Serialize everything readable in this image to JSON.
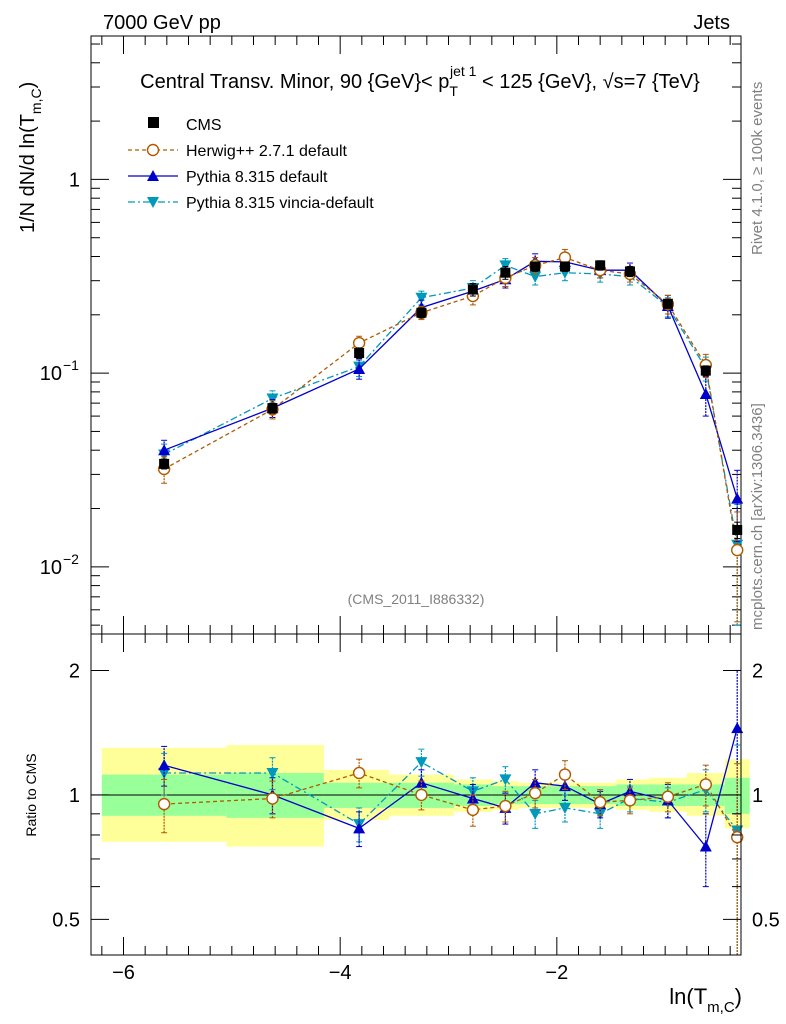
{
  "header": {
    "left": "7000 GeV pp",
    "right": "Jets"
  },
  "side_labels": {
    "rivet": "Rivet 4.1.0, ≥ 100k events",
    "mcplots": "mcplots.cern.ch [arXiv:1306.3436]"
  },
  "colors": {
    "cms": "#000000",
    "herwig": "#b35900",
    "pythia": "#0000cc",
    "vincia": "#0099bb",
    "band_outer": "#ffff99",
    "band_inner": "#99ff99"
  },
  "chart_data": [
    {
      "type": "line",
      "title": "Central Transv. Minor, 90 {GeV}< p_T^jet 1 < 125 {GeV}, √s=7 {TeV}",
      "title_parts": {
        "pre": "Central Transv. Minor, 90 {GeV}< p",
        "sub": "T",
        "sup": "jet 1",
        "post": " < 125 {GeV}, ",
        "sqrt": "√",
        "s_tail": "s=7 {TeV}"
      },
      "watermark": "(CMS_2011_I886332)",
      "ylabel": {
        "pre": "1/N   dN/d ln(T",
        "sub": "m,C",
        "post": ")"
      },
      "xlabel": {
        "pre": "ln(T",
        "sub": "m,C",
        "post": ")"
      },
      "yscale": "log",
      "ylim": [
        0.0045,
        5.5
      ],
      "xlim": [
        -6.3,
        -0.3
      ],
      "y_ticks": [
        {
          "value": 1,
          "base": "1",
          "exp": ""
        },
        {
          "value": 0.1,
          "base": "10",
          "exp": "−1"
        },
        {
          "value": 0.01,
          "base": "10",
          "exp": "−2"
        }
      ],
      "legend": {
        "position": "top-left",
        "entries": [
          {
            "key": "cms",
            "label": "CMS"
          },
          {
            "key": "herwig",
            "label": "Herwig++ 2.7.1 default"
          },
          {
            "key": "pythia",
            "label": "Pythia 8.315 default"
          },
          {
            "key": "vincia",
            "label": "Pythia 8.315 vincia-default"
          }
        ]
      },
      "series": [
        {
          "name": "CMS",
          "key": "cms",
          "x": [
            -5.625,
            -4.625,
            -3.825,
            -3.25,
            -2.775,
            -2.475,
            -2.2,
            -1.925,
            -1.6,
            -1.325,
            -0.975,
            -0.625,
            -0.335
          ],
          "values": [
            0.034,
            0.066,
            0.127,
            0.205,
            0.27,
            0.33,
            0.355,
            0.355,
            0.36,
            0.335,
            0.228,
            0.103,
            0.0155
          ],
          "errors": [
            0.002,
            0.004,
            0.008,
            0.012,
            0.02,
            0.025,
            0.02,
            0.02,
            0.02,
            0.02,
            0.012,
            0.006,
            0.0015
          ]
        },
        {
          "name": "Herwig++ 2.7.1 default",
          "key": "herwig",
          "x": [
            -5.625,
            -4.625,
            -3.825,
            -3.25,
            -2.775,
            -2.475,
            -2.2,
            -1.925,
            -1.6,
            -1.325,
            -0.975,
            -0.625,
            -0.335
          ],
          "values": [
            0.032,
            0.065,
            0.143,
            0.205,
            0.25,
            0.31,
            0.36,
            0.395,
            0.34,
            0.325,
            0.227,
            0.11,
            0.0122
          ],
          "errors": [
            0.005,
            0.007,
            0.012,
            0.016,
            0.025,
            0.03,
            0.035,
            0.04,
            0.03,
            0.03,
            0.025,
            0.015,
            0.007
          ]
        },
        {
          "name": "Pythia 8.315 default",
          "key": "pythia",
          "x": [
            -5.625,
            -4.625,
            -3.825,
            -3.25,
            -2.775,
            -2.475,
            -2.2,
            -1.925,
            -1.6,
            -1.325,
            -0.975,
            -0.625,
            -0.335
          ],
          "values": [
            0.04,
            0.066,
            0.105,
            0.218,
            0.265,
            0.305,
            0.378,
            0.375,
            0.34,
            0.34,
            0.222,
            0.078,
            0.0225
          ],
          "errors": [
            0.005,
            0.007,
            0.012,
            0.02,
            0.025,
            0.03,
            0.035,
            0.035,
            0.03,
            0.03,
            0.03,
            0.018,
            0.009
          ]
        },
        {
          "name": "Pythia 8.315 vincia-default",
          "key": "vincia",
          "x": [
            -5.625,
            -4.625,
            -3.825,
            -3.25,
            -2.775,
            -2.475,
            -2.2,
            -1.925,
            -1.6,
            -1.325,
            -0.975,
            -0.625,
            -0.335
          ],
          "values": [
            0.038,
            0.074,
            0.108,
            0.245,
            0.275,
            0.36,
            0.315,
            0.33,
            0.325,
            0.315,
            0.22,
            0.106,
            0.013
          ],
          "errors": [
            0.005,
            0.007,
            0.012,
            0.02,
            0.025,
            0.03,
            0.03,
            0.03,
            0.03,
            0.03,
            0.025,
            0.015,
            0.008
          ]
        }
      ]
    },
    {
      "type": "line",
      "title": "Ratio to CMS",
      "ylabel": "Ratio to CMS",
      "yscale": "log",
      "ylim": [
        0.41,
        2.45
      ],
      "xlim": [
        -6.3,
        -0.3
      ],
      "x_ticks": [
        -6,
        -4,
        -2
      ],
      "x_tick_labels": [
        "−6",
        "−4",
        "−2"
      ],
      "y_ticks": [
        0.5,
        1,
        2
      ],
      "y_tick_labels": [
        "0.5",
        "1",
        "2"
      ],
      "bands": {
        "x_edges": [
          -6.2,
          -5.05,
          -4.15,
          -3.55,
          -2.95,
          -2.6,
          -2.35,
          -2.05,
          -1.8,
          -1.45,
          -1.15,
          -0.8,
          -0.45,
          -0.22
        ],
        "inner_lo": [
          0.89,
          0.88,
          0.93,
          0.93,
          0.94,
          0.95,
          0.95,
          0.95,
          0.95,
          0.94,
          0.94,
          0.94,
          0.9
        ],
        "inner_hi": [
          1.12,
          1.13,
          1.07,
          1.07,
          1.06,
          1.05,
          1.05,
          1.05,
          1.05,
          1.06,
          1.06,
          1.06,
          1.1
        ],
        "outer_lo": [
          0.77,
          0.75,
          0.87,
          0.89,
          0.91,
          0.92,
          0.93,
          0.93,
          0.93,
          0.92,
          0.91,
          0.89,
          0.83
        ],
        "outer_hi": [
          1.3,
          1.32,
          1.15,
          1.12,
          1.09,
          1.08,
          1.07,
          1.07,
          1.07,
          1.09,
          1.1,
          1.13,
          1.22
        ]
      },
      "series": [
        {
          "name": "Herwig++ 2.7.1 default",
          "key": "herwig",
          "x": [
            -5.625,
            -4.625,
            -3.825,
            -3.25,
            -2.775,
            -2.475,
            -2.2,
            -1.925,
            -1.6,
            -1.325,
            -0.975,
            -0.625,
            -0.335
          ],
          "values": [
            0.95,
            0.98,
            1.13,
            1.0,
            0.92,
            0.94,
            1.01,
            1.12,
            0.96,
            0.97,
            0.99,
            1.06,
            0.79
          ],
          "errors": [
            0.14,
            0.1,
            0.09,
            0.08,
            0.08,
            0.08,
            0.08,
            0.09,
            0.07,
            0.07,
            0.08,
            0.12,
            0.4
          ]
        },
        {
          "name": "Pythia 8.315 default",
          "key": "pythia",
          "x": [
            -5.625,
            -4.625,
            -3.825,
            -3.25,
            -2.775,
            -2.475,
            -2.2,
            -1.925,
            -1.6,
            -1.325,
            -0.975,
            -0.625,
            -0.335
          ],
          "values": [
            1.18,
            1.0,
            0.83,
            1.07,
            0.98,
            0.93,
            1.07,
            1.05,
            0.95,
            1.02,
            0.97,
            0.75,
            1.45
          ],
          "errors": [
            0.13,
            0.1,
            0.08,
            0.08,
            0.08,
            0.08,
            0.08,
            0.08,
            0.07,
            0.07,
            0.09,
            0.15,
            0.55
          ]
        },
        {
          "name": "Pythia 8.315 vincia-default",
          "key": "vincia",
          "x": [
            -5.625,
            -4.625,
            -3.825,
            -3.25,
            -2.775,
            -2.475,
            -2.2,
            -1.925,
            -1.6,
            -1.325,
            -0.975,
            -0.625,
            -0.335
          ],
          "values": [
            1.13,
            1.13,
            0.85,
            1.2,
            1.02,
            1.09,
            0.9,
            0.93,
            0.9,
            0.98,
            0.96,
            1.03,
            0.82
          ],
          "errors": [
            0.13,
            0.1,
            0.08,
            0.09,
            0.08,
            0.08,
            0.07,
            0.07,
            0.07,
            0.07,
            0.08,
            0.12,
            0.5
          ]
        }
      ]
    }
  ]
}
